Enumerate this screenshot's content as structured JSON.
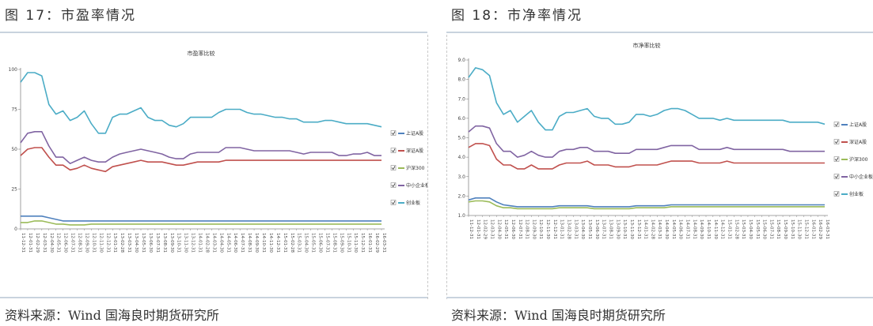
{
  "figures": [
    {
      "caption": "图 17：市盈率情况",
      "source": "资料来源：Wind 国海良时期货研究所"
    },
    {
      "caption": "图 18：市净率情况",
      "source": "资料来源：Wind 国海良时期货研究所"
    }
  ],
  "chart_data": [
    {
      "type": "line",
      "title": "市盈率比较",
      "xlabel": "",
      "ylabel": "",
      "ylim": [
        0,
        100
      ],
      "yticks": [
        "0",
        "25",
        "50",
        "75",
        "100"
      ],
      "grid": false,
      "legend_position": "right",
      "x": [
        "11-12-31",
        "12-01-31",
        "12-02-29",
        "12-03-31",
        "12-04-30",
        "12-05-31",
        "12-06-30",
        "12-07-31",
        "12-08-31",
        "12-09-30",
        "12-10-31",
        "12-11-30",
        "12-12-31",
        "13-01-31",
        "13-02-28",
        "13-03-31",
        "13-04-30",
        "13-05-31",
        "13-06-30",
        "13-07-31",
        "13-08-31",
        "13-09-30",
        "13-10-31",
        "13-11-30",
        "13-12-31",
        "14-01-31",
        "14-02-28",
        "14-03-31",
        "14-04-30",
        "14-05-31",
        "14-06-30",
        "14-07-31",
        "14-08-31",
        "14-09-30",
        "14-10-31",
        "14-11-30",
        "14-12-31",
        "15-01-31",
        "15-02-28",
        "15-03-31",
        "15-04-30",
        "15-05-31",
        "15-06-30",
        "15-07-31",
        "15-08-31",
        "15-09-30",
        "15-10-31",
        "15-11-30",
        "15-12-31",
        "16-01-31",
        "16-02-29",
        "16-03-31"
      ],
      "series": [
        {
          "name": "上证A股",
          "color": "#4f81bd",
          "values": [
            8,
            8,
            8,
            8,
            7,
            6,
            5,
            5,
            5,
            5,
            5,
            5,
            5,
            5,
            5,
            5,
            5,
            5,
            5,
            5,
            5,
            5,
            5,
            5,
            5,
            5,
            5,
            5,
            5,
            5,
            5,
            5,
            5,
            5,
            5,
            5,
            5,
            5,
            5,
            5,
            5,
            5,
            5,
            5,
            5,
            5,
            5,
            5,
            5,
            5,
            5,
            5
          ]
        },
        {
          "name": "深证A股",
          "color": "#c0504d",
          "values": [
            46,
            50,
            51,
            51,
            45,
            40,
            40,
            37,
            38,
            40,
            38,
            37,
            36,
            39,
            40,
            41,
            42,
            43,
            42,
            42,
            42,
            41,
            40,
            40,
            41,
            42,
            42,
            42,
            42,
            43,
            43,
            43,
            43,
            43,
            43,
            43,
            43,
            43,
            43,
            43,
            43,
            43,
            43,
            43,
            43,
            43,
            43,
            43,
            43,
            43,
            43,
            43
          ]
        },
        {
          "name": "沪深300",
          "color": "#9bbb59",
          "values": [
            4,
            4,
            5,
            5,
            4,
            3,
            3,
            2.5,
            2.5,
            2.5,
            3,
            3,
            3,
            3,
            3,
            3,
            3,
            3,
            3,
            3,
            3,
            3,
            3,
            3,
            3,
            3,
            3,
            3,
            3,
            3,
            3,
            3,
            3,
            3,
            3,
            3,
            3,
            3,
            3,
            3,
            3,
            3,
            3,
            3,
            3,
            3,
            3,
            3,
            3,
            3,
            3,
            3
          ]
        },
        {
          "name": "中小企业板",
          "color": "#8064a2",
          "values": [
            54,
            60,
            61,
            61,
            52,
            45,
            45,
            41,
            43,
            45,
            43,
            42,
            42,
            45,
            47,
            48,
            49,
            50,
            49,
            48,
            47,
            45,
            44,
            44,
            47,
            48,
            48,
            48,
            48,
            51,
            51,
            51,
            50,
            49,
            49,
            49,
            49,
            49,
            49,
            48,
            47,
            48,
            48,
            48,
            48,
            46,
            46,
            47,
            47,
            48,
            46,
            46
          ]
        },
        {
          "name": "创业板",
          "color": "#4bacc6",
          "values": [
            92,
            98,
            98,
            96,
            78,
            72,
            74,
            68,
            70,
            74,
            66,
            60,
            60,
            70,
            72,
            72,
            74,
            76,
            70,
            68,
            68,
            65,
            64,
            66,
            70,
            70,
            70,
            70,
            73,
            75,
            75,
            75,
            73,
            72,
            72,
            71,
            70,
            70,
            69,
            69,
            67,
            67,
            67,
            68,
            68,
            67,
            66,
            66,
            66,
            66,
            65,
            64
          ]
        }
      ]
    },
    {
      "type": "line",
      "title": "市净率比较",
      "xlabel": "",
      "ylabel": "",
      "ylim": [
        1,
        9
      ],
      "yticks": [
        "1.0",
        "2.0",
        "3.0",
        "4.0",
        "5.0",
        "6.0",
        "7.0",
        "8.0",
        "9.0"
      ],
      "grid": false,
      "legend_position": "right",
      "x": [
        "11-12-31",
        "12-01-31",
        "12-02-29",
        "12-03-31",
        "12-04-30",
        "12-05-31",
        "12-06-30",
        "12-07-31",
        "12-08-31",
        "12-09-30",
        "12-10-31",
        "12-11-30",
        "12-12-31",
        "13-01-31",
        "13-02-28",
        "13-03-31",
        "13-04-30",
        "13-05-31",
        "13-06-30",
        "13-07-31",
        "13-08-31",
        "13-09-30",
        "13-10-31",
        "13-11-30",
        "13-12-31",
        "14-01-31",
        "14-02-28",
        "14-03-31",
        "14-04-30",
        "14-05-31",
        "14-06-30",
        "14-07-31",
        "14-08-31",
        "14-09-30",
        "14-10-31",
        "14-11-30",
        "14-12-31",
        "15-01-31",
        "15-02-28",
        "15-03-31",
        "15-04-30",
        "15-05-31",
        "15-06-30",
        "15-07-31",
        "15-08-31",
        "15-09-30",
        "15-10-31",
        "15-11-30",
        "15-12-31",
        "16-01-31",
        "16-02-29",
        "16-03-31"
      ],
      "series": [
        {
          "name": "上证A股",
          "color": "#4f81bd",
          "values": [
            1.8,
            1.9,
            1.9,
            1.9,
            1.7,
            1.55,
            1.5,
            1.45,
            1.45,
            1.45,
            1.45,
            1.45,
            1.45,
            1.5,
            1.5,
            1.5,
            1.5,
            1.5,
            1.45,
            1.45,
            1.45,
            1.45,
            1.45,
            1.45,
            1.5,
            1.5,
            1.5,
            1.5,
            1.5,
            1.55,
            1.55,
            1.55,
            1.55,
            1.55,
            1.55,
            1.55,
            1.55,
            1.55,
            1.55,
            1.55,
            1.55,
            1.55,
            1.55,
            1.55,
            1.55,
            1.55,
            1.55,
            1.55,
            1.55,
            1.55,
            1.55,
            1.55
          ]
        },
        {
          "name": "深证A股",
          "color": "#c0504d",
          "values": [
            4.5,
            4.7,
            4.7,
            4.6,
            3.9,
            3.6,
            3.6,
            3.4,
            3.4,
            3.6,
            3.4,
            3.4,
            3.4,
            3.6,
            3.7,
            3.7,
            3.7,
            3.8,
            3.6,
            3.6,
            3.6,
            3.5,
            3.5,
            3.5,
            3.6,
            3.6,
            3.6,
            3.6,
            3.7,
            3.8,
            3.8,
            3.8,
            3.8,
            3.7,
            3.7,
            3.7,
            3.7,
            3.8,
            3.7,
            3.7,
            3.7,
            3.7,
            3.7,
            3.7,
            3.7,
            3.7,
            3.7,
            3.7,
            3.7,
            3.7,
            3.7,
            3.7
          ]
        },
        {
          "name": "沪深300",
          "color": "#9bbb59",
          "values": [
            1.7,
            1.75,
            1.75,
            1.7,
            1.5,
            1.4,
            1.4,
            1.35,
            1.35,
            1.35,
            1.35,
            1.35,
            1.35,
            1.4,
            1.4,
            1.4,
            1.4,
            1.4,
            1.35,
            1.35,
            1.35,
            1.35,
            1.35,
            1.35,
            1.4,
            1.4,
            1.4,
            1.4,
            1.4,
            1.45,
            1.45,
            1.45,
            1.45,
            1.45,
            1.45,
            1.45,
            1.45,
            1.45,
            1.45,
            1.45,
            1.45,
            1.45,
            1.45,
            1.45,
            1.45,
            1.45,
            1.45,
            1.45,
            1.45,
            1.45,
            1.45,
            1.45
          ]
        },
        {
          "name": "中小企业板",
          "color": "#8064a2",
          "values": [
            5.3,
            5.6,
            5.6,
            5.5,
            4.7,
            4.3,
            4.3,
            4.0,
            4.1,
            4.3,
            4.1,
            4.0,
            4.0,
            4.3,
            4.4,
            4.4,
            4.5,
            4.5,
            4.3,
            4.3,
            4.3,
            4.2,
            4.2,
            4.2,
            4.4,
            4.4,
            4.4,
            4.4,
            4.5,
            4.6,
            4.6,
            4.6,
            4.6,
            4.4,
            4.4,
            4.4,
            4.4,
            4.5,
            4.4,
            4.4,
            4.4,
            4.4,
            4.4,
            4.4,
            4.4,
            4.4,
            4.3,
            4.3,
            4.3,
            4.3,
            4.3,
            4.3
          ]
        },
        {
          "name": "创业板",
          "color": "#4bacc6",
          "values": [
            8.1,
            8.6,
            8.5,
            8.2,
            6.8,
            6.2,
            6.4,
            5.8,
            6.1,
            6.4,
            5.8,
            5.4,
            5.4,
            6.1,
            6.3,
            6.3,
            6.4,
            6.5,
            6.1,
            6.0,
            6.0,
            5.7,
            5.7,
            5.8,
            6.2,
            6.2,
            6.1,
            6.2,
            6.4,
            6.5,
            6.5,
            6.4,
            6.2,
            6.0,
            6.0,
            6.0,
            5.9,
            6.0,
            5.9,
            5.9,
            5.9,
            5.9,
            5.9,
            5.9,
            5.9,
            5.9,
            5.8,
            5.8,
            5.8,
            5.8,
            5.8,
            5.7
          ]
        }
      ]
    }
  ]
}
